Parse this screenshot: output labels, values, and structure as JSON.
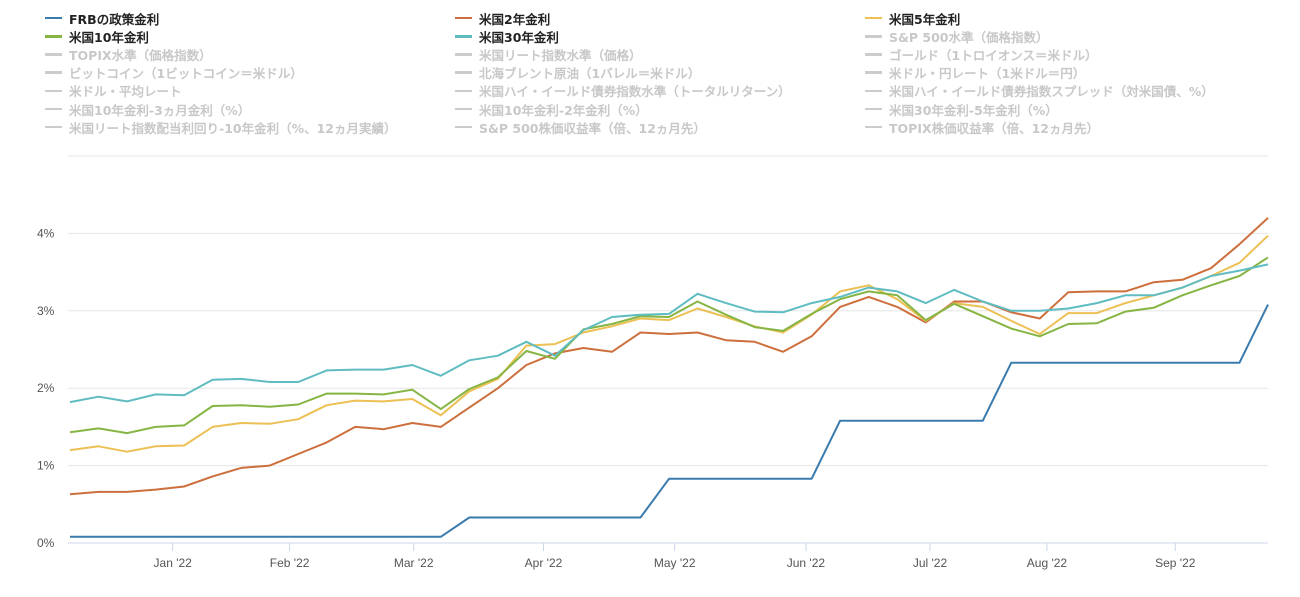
{
  "legend": {
    "items": [
      {
        "label": "FRBの政策金利",
        "active": true,
        "color": "#3a7bad"
      },
      {
        "label": "米国2年金利",
        "active": true,
        "color": "#cc6f3c"
      },
      {
        "label": "米国5年金利",
        "active": true,
        "color": "#ecc054"
      },
      {
        "label": "米国10年金利",
        "active": true,
        "color": "#86b544"
      },
      {
        "label": "米国30年金利",
        "active": true,
        "color": "#5fbcc0"
      },
      {
        "label": "S&P 500水準（価格指数）",
        "active": false
      },
      {
        "label": "TOPIX水準（価格指数）",
        "active": false
      },
      {
        "label": "米国リート指数水準（価格）",
        "active": false
      },
      {
        "label": "ゴールド（1トロイオンス＝米ドル）",
        "active": false
      },
      {
        "label": "ビットコイン（1ビットコイン＝米ドル）",
        "active": false
      },
      {
        "label": "北海ブレント原油（1バレル＝米ドル）",
        "active": false
      },
      {
        "label": "米ドル・円レート（1米ドル＝円）",
        "active": false
      },
      {
        "label": "米ドル・平均レート",
        "active": false
      },
      {
        "label": "米国ハイ・イールド債券指数水準（トータルリターン）",
        "active": false
      },
      {
        "label": "米国ハイ・イールド債券指数スプレッド（対米国債、%）",
        "active": false
      },
      {
        "label": "米国10年金利-3ヵ月金利（%）",
        "active": false
      },
      {
        "label": "米国10年金利-2年金利（%）",
        "active": false
      },
      {
        "label": "米国30年金利-5年金利（%）",
        "active": false
      },
      {
        "label": "米国リート指数配当利回り-10年金利（%、12ヵ月実績）",
        "active": false
      },
      {
        "label": "S&P 500株価収益率（倍、12ヵ月先）",
        "active": false
      },
      {
        "label": "TOPIX株価収益率（倍、12ヵ月先）",
        "active": false
      }
    ]
  },
  "chart_data": {
    "type": "line",
    "title": "",
    "xlabel": "",
    "ylabel": "",
    "x_unit": "week index (weekly, Dec 2021 - Sep 2022)",
    "xlim": [
      0,
      42
    ],
    "ylim": [
      0,
      5
    ],
    "yticks": [
      {
        "value": 0,
        "label": "0%"
      },
      {
        "value": 1,
        "label": "1%"
      },
      {
        "value": 2,
        "label": "2%"
      },
      {
        "value": 3,
        "label": "3%"
      },
      {
        "value": 4,
        "label": "4%"
      }
    ],
    "xticks": [
      {
        "value": 3.6,
        "label": "Jan '22"
      },
      {
        "value": 7.7,
        "label": "Feb '22"
      },
      {
        "value": 12.05,
        "label": "Mar '22"
      },
      {
        "value": 16.6,
        "label": "Apr '22"
      },
      {
        "value": 21.2,
        "label": "May '22"
      },
      {
        "value": 25.8,
        "label": "Jun '22"
      },
      {
        "value": 30.15,
        "label": "Jul '22"
      },
      {
        "value": 34.25,
        "label": "Aug '22"
      },
      {
        "value": 38.75,
        "label": "Sep '22"
      }
    ],
    "grid": true,
    "legend_position": "top",
    "series": [
      {
        "name": "FRBの政策金利",
        "color": "#3a7bad",
        "values": [
          0.08,
          0.08,
          0.08,
          0.08,
          0.08,
          0.08,
          0.08,
          0.08,
          0.08,
          0.08,
          0.08,
          0.08,
          0.08,
          0.08,
          0.33,
          0.33,
          0.33,
          0.33,
          0.33,
          0.33,
          0.33,
          0.83,
          0.83,
          0.83,
          0.83,
          0.83,
          0.83,
          1.58,
          1.58,
          1.58,
          1.58,
          1.58,
          1.58,
          2.33,
          2.33,
          2.33,
          2.33,
          2.33,
          2.33,
          2.33,
          2.33,
          2.33,
          3.08
        ]
      },
      {
        "name": "米国2年金利",
        "color": "#cc6f3c",
        "values": [
          0.63,
          0.66,
          0.66,
          0.69,
          0.73,
          0.86,
          0.97,
          1.0,
          1.15,
          1.3,
          1.5,
          1.47,
          1.55,
          1.5,
          1.75,
          2.0,
          2.3,
          2.45,
          2.52,
          2.47,
          2.72,
          2.7,
          2.72,
          2.62,
          2.6,
          2.47,
          2.67,
          3.05,
          3.18,
          3.05,
          2.85,
          3.12,
          3.12,
          2.98,
          2.9,
          3.24,
          3.25,
          3.25,
          3.37,
          3.4,
          3.55,
          3.86,
          4.2
        ]
      },
      {
        "name": "米国5年金利",
        "color": "#ecc054",
        "values": [
          1.2,
          1.25,
          1.18,
          1.25,
          1.26,
          1.5,
          1.55,
          1.54,
          1.6,
          1.78,
          1.84,
          1.83,
          1.86,
          1.65,
          1.96,
          2.12,
          2.55,
          2.57,
          2.72,
          2.8,
          2.9,
          2.88,
          3.03,
          2.92,
          2.8,
          2.72,
          2.95,
          3.25,
          3.33,
          3.15,
          2.87,
          3.1,
          3.05,
          2.87,
          2.7,
          2.97,
          2.97,
          3.1,
          3.2,
          3.3,
          3.45,
          3.62,
          3.97
        ]
      },
      {
        "name": "米国10年金利",
        "color": "#86b544",
        "values": [
          1.43,
          1.48,
          1.42,
          1.5,
          1.52,
          1.77,
          1.78,
          1.76,
          1.79,
          1.93,
          1.93,
          1.92,
          1.98,
          1.73,
          1.99,
          2.14,
          2.48,
          2.38,
          2.76,
          2.83,
          2.93,
          2.92,
          3.12,
          2.95,
          2.79,
          2.74,
          2.96,
          3.15,
          3.25,
          3.2,
          2.88,
          3.09,
          2.93,
          2.77,
          2.67,
          2.83,
          2.84,
          2.99,
          3.04,
          3.2,
          3.33,
          3.45,
          3.69
        ]
      },
      {
        "name": "米国30年金利",
        "color": "#5fbcc0",
        "values": [
          1.82,
          1.89,
          1.83,
          1.92,
          1.91,
          2.11,
          2.12,
          2.08,
          2.08,
          2.23,
          2.24,
          2.24,
          2.3,
          2.16,
          2.36,
          2.42,
          2.6,
          2.42,
          2.75,
          2.92,
          2.95,
          2.96,
          3.22,
          3.1,
          2.99,
          2.98,
          3.1,
          3.18,
          3.3,
          3.25,
          3.1,
          3.27,
          3.12,
          3.0,
          3.0,
          3.03,
          3.1,
          3.2,
          3.2,
          3.3,
          3.45,
          3.52,
          3.6
        ]
      }
    ]
  }
}
